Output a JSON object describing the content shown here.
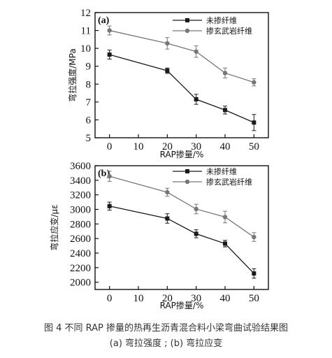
{
  "chart_data": [
    {
      "type": "line",
      "panel_label": "(a)",
      "x": [
        0,
        20,
        30,
        40,
        50
      ],
      "xlabel": "RAP掺量/%",
      "ylabel": "弯拉强度/MPa",
      "xlim": [
        -5,
        55
      ],
      "ylim": [
        5,
        12
      ],
      "xticks": [
        0,
        10,
        20,
        30,
        40,
        50
      ],
      "yticks": [
        5,
        6,
        7,
        8,
        9,
        10,
        11,
        12
      ],
      "legend_position": "top-right",
      "grid": false,
      "series": [
        {
          "name": "未掺纤维",
          "marker": "square",
          "color": "#1a1a1a",
          "values": [
            9.65,
            8.75,
            7.15,
            6.55,
            5.85
          ],
          "errors": [
            0.25,
            0.15,
            0.28,
            0.22,
            0.45
          ]
        },
        {
          "name": "掺玄武岩纤维",
          "marker": "circle",
          "color": "#777777",
          "values": [
            11.0,
            10.28,
            9.82,
            8.62,
            8.1
          ],
          "errors": [
            0.25,
            0.32,
            0.32,
            0.28,
            0.2
          ]
        }
      ]
    },
    {
      "type": "line",
      "panel_label": "(b)",
      "x": [
        0,
        20,
        30,
        40,
        50
      ],
      "xlabel": "RAP掺量/%",
      "ylabel": "弯拉应变/με",
      "xlim": [
        -5,
        55
      ],
      "ylim": [
        1900,
        3600
      ],
      "xticks": [
        0,
        10,
        20,
        30,
        40,
        50
      ],
      "yticks": [
        2000,
        2200,
        2400,
        2600,
        2800,
        3000,
        3200,
        3400,
        3600
      ],
      "legend_position": "top-right",
      "grid": false,
      "series": [
        {
          "name": "未掺纤维",
          "marker": "square",
          "color": "#1a1a1a",
          "values": [
            3045,
            2875,
            2665,
            2530,
            2120
          ],
          "errors": [
            55,
            65,
            55,
            45,
            65
          ]
        },
        {
          "name": "掺玄武岩纤维",
          "marker": "circle",
          "color": "#777777",
          "values": [
            3455,
            3235,
            3005,
            2895,
            2620
          ],
          "errors": [
            70,
            55,
            65,
            80,
            60
          ]
        }
      ]
    }
  ],
  "caption": {
    "line1": "图 4 不同 RAP 掺量的热再生沥青混合料小梁弯曲试验结果图",
    "line2": "(a) 弯拉强度 ; (b) 弯拉应变"
  }
}
